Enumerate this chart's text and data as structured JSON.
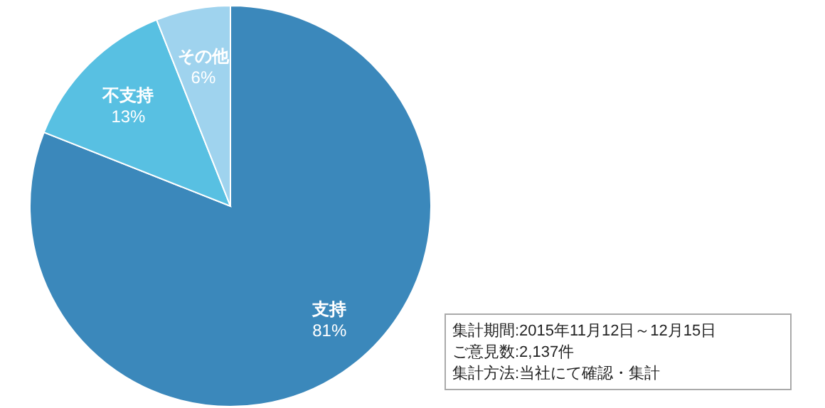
{
  "chart_data": {
    "type": "pie",
    "categories": [
      "支持",
      "不支持",
      "その他"
    ],
    "values": [
      81,
      13,
      6
    ],
    "value_labels": [
      "81%",
      "13%",
      "6%"
    ],
    "colors": [
      "#3b88bb",
      "#58c0e2",
      "#9fd3ee"
    ],
    "annotations": [
      "集計期間:2015年11月12日～12月15日",
      "ご意見数:2,137件",
      "集計方法:当社にて確認・集計"
    ]
  }
}
